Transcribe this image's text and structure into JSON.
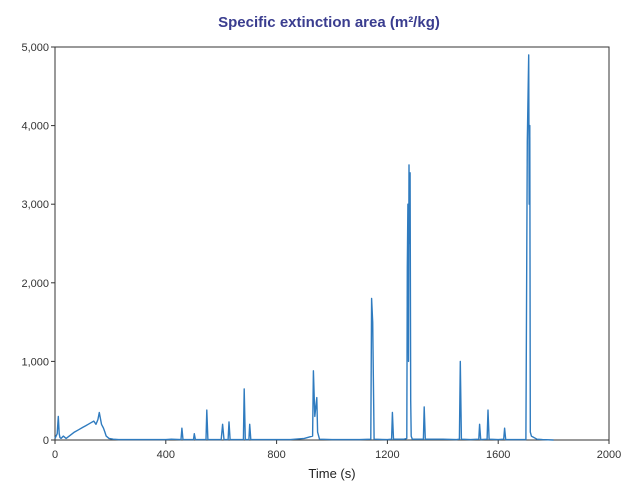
{
  "chart_data": {
    "type": "line",
    "title": "Specific extinction area (m²/kg)",
    "xlabel": "Time (s)",
    "ylabel": "",
    "xlim": [
      0,
      2000
    ],
    "ylim": [
      0,
      5000
    ],
    "xticks": [
      0,
      400,
      800,
      1200,
      1600,
      2000
    ],
    "yticks": [
      0,
      1000,
      2000,
      3000,
      4000,
      5000
    ],
    "xtick_labels": [
      "0",
      "400",
      "800",
      "1200",
      "1600",
      "2000"
    ],
    "ytick_labels": [
      "0",
      "1,000",
      "2,000",
      "3,000",
      "4,000",
      "5,000"
    ],
    "grid": false,
    "legend": "none",
    "series": [
      {
        "color": "#2f7bbf",
        "x": [
          0,
          8,
          12,
          15,
          18,
          22,
          30,
          40,
          55,
          70,
          85,
          100,
          110,
          120,
          130,
          140,
          148,
          155,
          160,
          168,
          175,
          180,
          185,
          195,
          210,
          230,
          260,
          300,
          350,
          400,
          420,
          455,
          458,
          462,
          500,
          503,
          507,
          545,
          548,
          552,
          600,
          605,
          610,
          625,
          628,
          632,
          640,
          680,
          683,
          687,
          700,
          703,
          707,
          800,
          850,
          900,
          930,
          933,
          938,
          945,
          948,
          955,
          1000,
          1050,
          1100,
          1140,
          1143,
          1147,
          1152,
          1200,
          1215,
          1218,
          1222,
          1260,
          1270,
          1272,
          1274,
          1276,
          1278,
          1280,
          1282,
          1284,
          1286,
          1290,
          1330,
          1333,
          1337,
          1400,
          1450,
          1460,
          1463,
          1467,
          1500,
          1530,
          1533,
          1537,
          1560,
          1563,
          1567,
          1600,
          1620,
          1623,
          1627,
          1680,
          1700,
          1705,
          1710,
          1712,
          1714,
          1716,
          1720,
          1740,
          1760,
          1800
        ],
        "y": [
          20,
          80,
          300,
          80,
          30,
          20,
          50,
          20,
          60,
          100,
          130,
          160,
          180,
          200,
          220,
          240,
          200,
          260,
          350,
          200,
          150,
          100,
          50,
          20,
          10,
          5,
          5,
          5,
          5,
          5,
          10,
          5,
          150,
          5,
          5,
          80,
          5,
          5,
          380,
          5,
          5,
          200,
          5,
          5,
          230,
          5,
          5,
          5,
          650,
          5,
          5,
          200,
          5,
          5,
          5,
          20,
          50,
          880,
          300,
          540,
          100,
          10,
          5,
          5,
          5,
          10,
          1800,
          1500,
          10,
          5,
          10,
          350,
          10,
          10,
          20,
          2200,
          3000,
          1000,
          3500,
          2500,
          3400,
          500,
          50,
          10,
          10,
          420,
          10,
          10,
          5,
          10,
          1000,
          10,
          5,
          10,
          200,
          5,
          10,
          380,
          10,
          5,
          10,
          150,
          5,
          5,
          5,
          3800,
          4900,
          3000,
          4000,
          100,
          50,
          10,
          5,
          0
        ]
      }
    ]
  }
}
